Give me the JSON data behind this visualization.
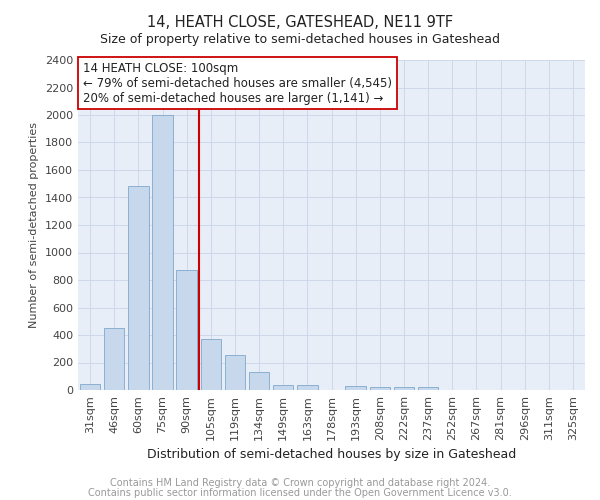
{
  "title": "14, HEATH CLOSE, GATESHEAD, NE11 9TF",
  "subtitle": "Size of property relative to semi-detached houses in Gateshead",
  "xlabel": "Distribution of semi-detached houses by size in Gateshead",
  "ylabel": "Number of semi-detached properties",
  "categories": [
    "31sqm",
    "46sqm",
    "60sqm",
    "75sqm",
    "90sqm",
    "105sqm",
    "119sqm",
    "134sqm",
    "149sqm",
    "163sqm",
    "178sqm",
    "193sqm",
    "208sqm",
    "222sqm",
    "237sqm",
    "252sqm",
    "267sqm",
    "281sqm",
    "296sqm",
    "311sqm",
    "325sqm"
  ],
  "values": [
    45,
    450,
    1480,
    2000,
    870,
    370,
    255,
    130,
    40,
    40,
    0,
    30,
    20,
    20,
    20,
    0,
    0,
    0,
    0,
    0,
    0
  ],
  "bar_color": "#c8d8ec",
  "bar_edgecolor": "#7fa8cc",
  "vline_color": "#cc0000",
  "vline_x": 4.5,
  "annotation_line1": "14 HEATH CLOSE: 100sqm",
  "annotation_line2": "← 79% of semi-detached houses are smaller (4,545)",
  "annotation_line3": "20% of semi-detached houses are larger (1,141) →",
  "annotation_box_edgecolor": "#cc0000",
  "ylim": [
    0,
    2400
  ],
  "yticks": [
    0,
    200,
    400,
    600,
    800,
    1000,
    1200,
    1400,
    1600,
    1800,
    2000,
    2200,
    2400
  ],
  "grid_color": "#c8d4e8",
  "background_color": "#e8eef8",
  "footer_line1": "Contains HM Land Registry data © Crown copyright and database right 2024.",
  "footer_line2": "Contains public sector information licensed under the Open Government Licence v3.0.",
  "title_fontsize": 10.5,
  "subtitle_fontsize": 9,
  "annotation_fontsize": 8.5,
  "tick_fontsize": 8,
  "ylabel_fontsize": 8,
  "xlabel_fontsize": 9,
  "footer_fontsize": 7
}
